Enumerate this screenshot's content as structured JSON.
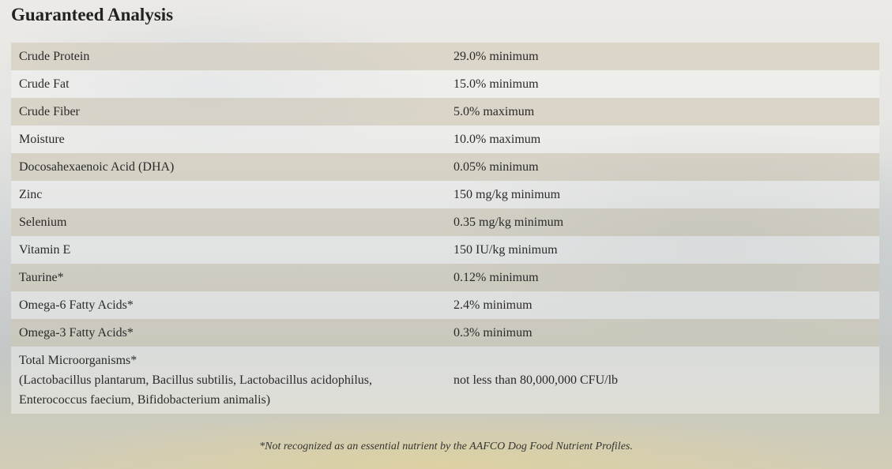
{
  "header": {
    "title": "Guaranteed Analysis"
  },
  "table": {
    "rows": [
      {
        "label": "Crude Protein",
        "value": "29.0% minimum"
      },
      {
        "label": "Crude Fat",
        "value": "15.0% minimum"
      },
      {
        "label": "Crude Fiber",
        "value": "5.0% maximum"
      },
      {
        "label": "Moisture",
        "value": "10.0% maximum"
      },
      {
        "label": "Docosahexaenoic Acid (DHA)",
        "value": "0.05% minimum"
      },
      {
        "label": "Zinc",
        "value": "150 mg/kg minimum"
      },
      {
        "label": "Selenium",
        "value": "0.35 mg/kg minimum"
      },
      {
        "label": "Vitamin E",
        "value": "150 IU/kg minimum"
      },
      {
        "label": "Taurine*",
        "value": "0.12% minimum"
      },
      {
        "label": "Omega-6 Fatty Acids*",
        "value": "2.4% minimum"
      },
      {
        "label": "Omega-3 Fatty Acids*",
        "value": "0.3% minimum"
      },
      {
        "label_lines": [
          "Total Microorganisms*",
          "(Lactobacillus plantarum, Bacillus subtilis, Lactobacillus acidophilus,",
          "Enterococcus faecium, Bifidobacterium animalis)"
        ],
        "value": "not less than 80,000,000 CFU/lb"
      }
    ]
  },
  "footnote": "*Not recognized as an essential nutrient by the AAFCO Dog Food Nutrient Profiles."
}
